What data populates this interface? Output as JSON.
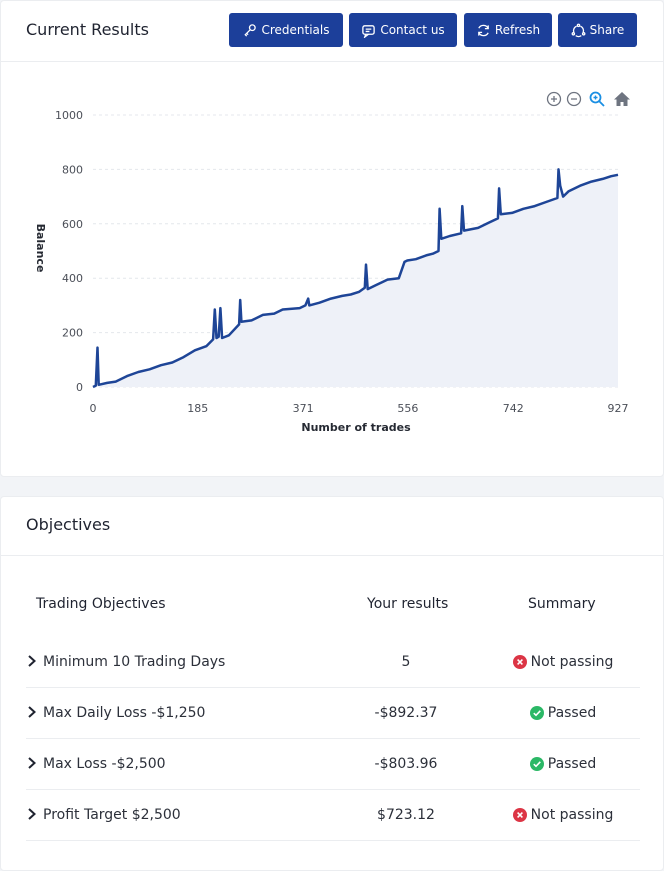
{
  "results_card": {
    "title": "Current Results",
    "buttons": {
      "credentials": "Credentials",
      "contact": "Contact us",
      "refresh": "Refresh",
      "share": "Share"
    },
    "toolbar_icons": [
      "zoom-in-icon",
      "zoom-out-icon",
      "zoom-icon",
      "home-icon"
    ]
  },
  "colors": {
    "primary": "#1c3f9a",
    "line": "#1e4597",
    "area": "#eef1f8",
    "pass": "#2bb866",
    "fail": "#dc3545"
  },
  "chart_data": {
    "type": "area",
    "xlabel": "Number of trades",
    "ylabel": "Balance",
    "xlim": [
      0,
      927
    ],
    "ylim": [
      0,
      1000
    ],
    "xticks": [
      "0",
      "185",
      "371",
      "556",
      "742",
      "927"
    ],
    "yticks": [
      "0",
      "200",
      "400",
      "600",
      "800",
      "1000"
    ],
    "grid": true,
    "series": [
      {
        "points": [
          [
            0,
            0
          ],
          [
            5,
            5
          ],
          [
            8,
            145
          ],
          [
            10,
            8
          ],
          [
            25,
            15
          ],
          [
            40,
            20
          ],
          [
            60,
            40
          ],
          [
            80,
            55
          ],
          [
            100,
            65
          ],
          [
            120,
            80
          ],
          [
            140,
            90
          ],
          [
            160,
            110
          ],
          [
            180,
            135
          ],
          [
            200,
            150
          ],
          [
            212,
            175
          ],
          [
            215,
            285
          ],
          [
            218,
            180
          ],
          [
            222,
            185
          ],
          [
            225,
            290
          ],
          [
            228,
            180
          ],
          [
            240,
            190
          ],
          [
            258,
            230
          ],
          [
            260,
            320
          ],
          [
            262,
            240
          ],
          [
            280,
            245
          ],
          [
            300,
            265
          ],
          [
            320,
            270
          ],
          [
            335,
            285
          ],
          [
            365,
            290
          ],
          [
            375,
            300
          ],
          [
            380,
            325
          ],
          [
            382,
            300
          ],
          [
            400,
            310
          ],
          [
            420,
            325
          ],
          [
            440,
            335
          ],
          [
            455,
            340
          ],
          [
            470,
            350
          ],
          [
            480,
            365
          ],
          [
            482,
            450
          ],
          [
            485,
            360
          ],
          [
            500,
            375
          ],
          [
            520,
            395
          ],
          [
            540,
            400
          ],
          [
            550,
            460
          ],
          [
            555,
            465
          ],
          [
            570,
            470
          ],
          [
            590,
            485
          ],
          [
            600,
            490
          ],
          [
            610,
            500
          ],
          [
            612,
            655
          ],
          [
            615,
            545
          ],
          [
            630,
            555
          ],
          [
            650,
            565
          ],
          [
            652,
            665
          ],
          [
            655,
            575
          ],
          [
            680,
            585
          ],
          [
            700,
            605
          ],
          [
            715,
            620
          ],
          [
            717,
            730
          ],
          [
            720,
            635
          ],
          [
            740,
            640
          ],
          [
            760,
            655
          ],
          [
            780,
            665
          ],
          [
            800,
            680
          ],
          [
            820,
            695
          ],
          [
            822,
            800
          ],
          [
            825,
            740
          ],
          [
            830,
            700
          ],
          [
            840,
            720
          ],
          [
            860,
            740
          ],
          [
            880,
            755
          ],
          [
            900,
            765
          ],
          [
            915,
            775
          ],
          [
            927,
            780
          ]
        ]
      }
    ]
  },
  "objectives_card": {
    "title": "Objectives",
    "headers": {
      "objective": "Trading Objectives",
      "result": "Your results",
      "summary": "Summary"
    },
    "rows": [
      {
        "name": "Minimum 10 Trading Days",
        "value": "5",
        "status": "Not passing",
        "status_icon": "x-circle-icon"
      },
      {
        "name": "Max Daily Loss -$1,250",
        "value": "-$892.37",
        "status": "Passed",
        "status_icon": "check-circle-icon"
      },
      {
        "name": "Max Loss -$2,500",
        "value": "-$803.96",
        "status": "Passed",
        "status_icon": "check-circle-icon"
      },
      {
        "name": "Profit Target $2,500",
        "value": "$723.12",
        "status": "Not passing",
        "status_icon": "x-circle-icon"
      }
    ]
  }
}
